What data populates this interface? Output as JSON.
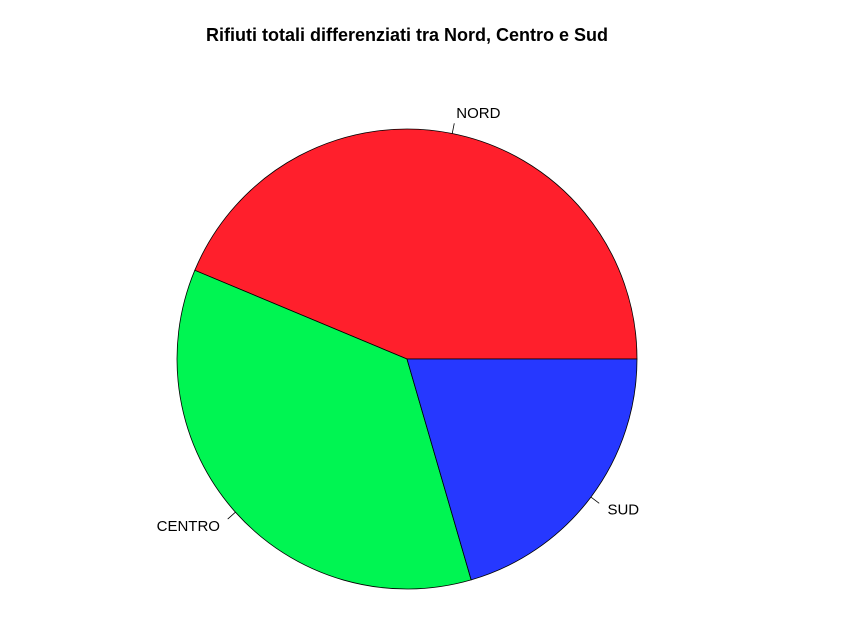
{
  "chart_data": {
    "type": "pie",
    "title": "Rifiuti totali differenziati tra Nord, Centro e Sud",
    "labels": [
      "NORD",
      "CENTRO",
      "SUD"
    ],
    "values": [
      43.7,
      35.8,
      20.5
    ],
    "colors": [
      "#ff1f2c",
      "#00f552",
      "#2638ff"
    ],
    "start_angle_deg": 0,
    "direction": "counterclockwise",
    "legend": "none"
  }
}
